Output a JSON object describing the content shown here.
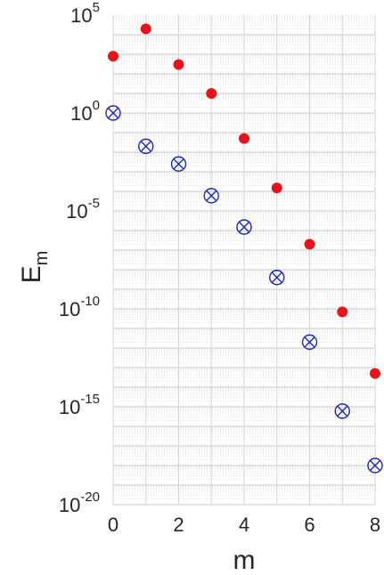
{
  "chart_data": {
    "type": "scatter",
    "xlabel": "m",
    "ylabel": "E",
    "ylabel_subscript": "m",
    "xlim": [
      0,
      8
    ],
    "ylim": [
      1e-20,
      100000.0
    ],
    "y_scale": "log",
    "grid": true,
    "x_ticks": [
      "0",
      "2",
      "4",
      "6",
      "8"
    ],
    "y_ticks": [
      {
        "value": 100000.0,
        "base": "10",
        "exp": "5"
      },
      {
        "value": 1.0,
        "base": "10",
        "exp": "0"
      },
      {
        "value": 1e-05,
        "base": "10",
        "exp": "-5"
      },
      {
        "value": 1e-10,
        "base": "10",
        "exp": "-10"
      },
      {
        "value": 1e-15,
        "base": "10",
        "exp": "-15"
      },
      {
        "value": 1e-20,
        "base": "10",
        "exp": "-20"
      }
    ],
    "series": [
      {
        "marker": "filled-circle",
        "color": "#e8141b",
        "x": [
          0,
          1,
          2,
          3,
          4,
          5,
          6,
          7,
          8
        ],
        "y": [
          800,
          20000,
          300,
          10,
          0.05,
          0.00015,
          2e-07,
          7e-11,
          5e-14
        ]
      },
      {
        "marker": "circle-x",
        "color": "#1f29b0",
        "x": [
          0,
          1,
          2,
          3,
          4,
          5,
          6,
          7,
          8
        ],
        "y": [
          1,
          0.02,
          0.0025,
          6e-05,
          1.5e-06,
          4e-09,
          2e-12,
          6e-16,
          1e-18
        ]
      }
    ]
  }
}
